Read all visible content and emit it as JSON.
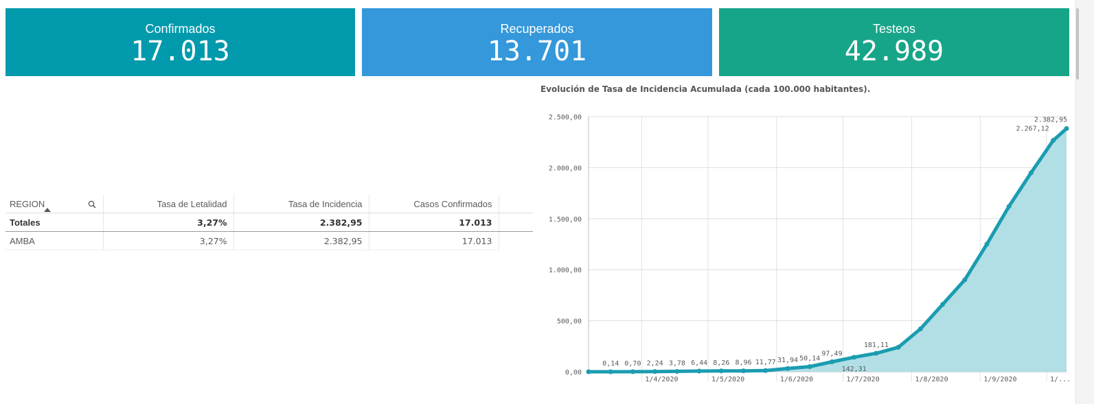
{
  "kpis": [
    {
      "label": "Confirmados",
      "value": "17.013",
      "color": "#009AAC"
    },
    {
      "label": "Recuperados",
      "value": "13.701",
      "color": "#3498DB"
    },
    {
      "label": "Testeos",
      "value": "42.989",
      "color": "#17A589"
    }
  ],
  "table": {
    "headers": [
      "REGION",
      "Tasa de Letalidad",
      "Tasa de Incidencia",
      "Casos Confirmados"
    ],
    "totals": [
      "Totales",
      "3,27%",
      "2.382,95",
      "17.013"
    ],
    "rows": [
      [
        "AMBA",
        "3,27%",
        "2.382,95",
        "17.013"
      ]
    ]
  },
  "chart_data": {
    "type": "area",
    "title": "Evolución de Tasa de Incidencia Acumulada (cada 100.000 habitantes).",
    "xlabel": "",
    "ylabel": "",
    "ylim": [
      0,
      2500
    ],
    "yticks": [
      "0,00",
      "500,00",
      "1.000,00",
      "1.500,00",
      "2.000,00",
      "2.500,00"
    ],
    "xticks": [
      "1/4/2020",
      "1/5/2020",
      "1/6/2020",
      "1/7/2020",
      "1/8/2020",
      "1/9/2020",
      "1/..."
    ],
    "grid": true,
    "line_color": "#1B9CB0",
    "fill_color": "#B1DFE5",
    "x": [
      "2020-03-08",
      "2020-03-18",
      "2020-03-28",
      "2020-04-07",
      "2020-04-17",
      "2020-04-27",
      "2020-05-07",
      "2020-05-17",
      "2020-05-27",
      "2020-06-06",
      "2020-06-16",
      "2020-06-26",
      "2020-07-06",
      "2020-07-16",
      "2020-07-26",
      "2020-08-05",
      "2020-08-15",
      "2020-08-25",
      "2020-09-04",
      "2020-09-14",
      "2020-09-24",
      "2020-10-04",
      "2020-10-10"
    ],
    "values": [
      0,
      0.14,
      0.7,
      2.24,
      3.78,
      6.44,
      8.26,
      8.96,
      11.77,
      31.94,
      50.14,
      97.49,
      142.31,
      181.11,
      240,
      420,
      660,
      900,
      1250,
      1620,
      1950,
      2267.12,
      2382.95
    ],
    "data_labels": [
      {
        "x": "2020-03-18",
        "text": "0,14"
      },
      {
        "x": "2020-03-28",
        "text": "0,70"
      },
      {
        "x": "2020-04-07",
        "text": "2,24"
      },
      {
        "x": "2020-04-17",
        "text": "3,78"
      },
      {
        "x": "2020-04-27",
        "text": "6,44"
      },
      {
        "x": "2020-05-07",
        "text": "8,26"
      },
      {
        "x": "2020-05-17",
        "text": "8,96"
      },
      {
        "x": "2020-05-27",
        "text": "11,77"
      },
      {
        "x": "2020-06-06",
        "text": "31,94"
      },
      {
        "x": "2020-06-16",
        "text": "50,14"
      },
      {
        "x": "2020-06-26",
        "text": "97,49"
      },
      {
        "x": "2020-07-06",
        "text": "142,31"
      },
      {
        "x": "2020-07-16",
        "text": "181,11"
      },
      {
        "x": "2020-10-04",
        "text": "2.267,12"
      },
      {
        "x": "2020-10-10",
        "text": "2.382,95"
      }
    ]
  }
}
